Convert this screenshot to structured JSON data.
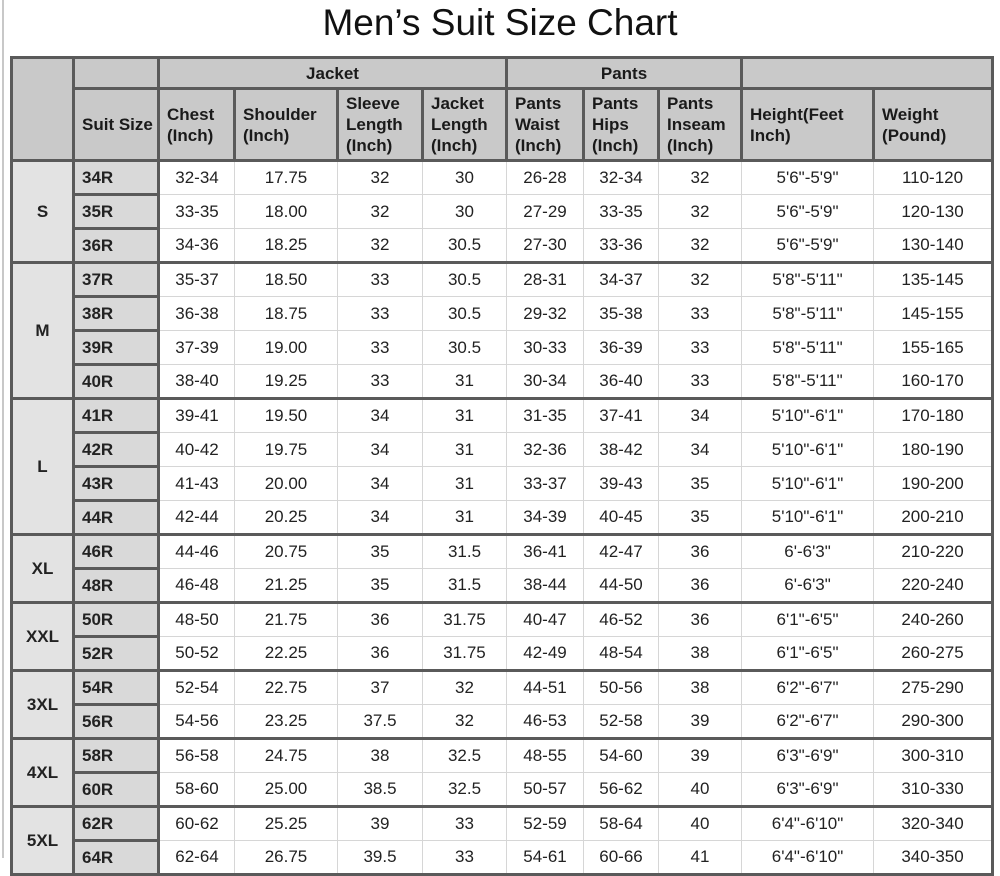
{
  "title": "Men’s Suit Size Chart",
  "group_headers": [
    "",
    "",
    "Jacket",
    "Pants",
    ""
  ],
  "column_headers": [
    "Suit Size",
    "Chest (Inch)",
    "Shoulder (Inch)",
    "Sleeve Length (Inch)",
    "Jacket Length (Inch)",
    "Pants Waist (Inch)",
    "Pants Hips (Inch)",
    "Pants Inseam (Inch)",
    "Height(Feet Inch)",
    "Weight (Pound)"
  ],
  "groups": [
    {
      "label": "S",
      "rows": [
        [
          "34R",
          "32-34",
          "17.75",
          "32",
          "30",
          "26-28",
          "32-34",
          "32",
          "5'6\"-5'9\"",
          "110-120"
        ],
        [
          "35R",
          "33-35",
          "18.00",
          "32",
          "30",
          "27-29",
          "33-35",
          "32",
          "5'6\"-5'9\"",
          "120-130"
        ],
        [
          "36R",
          "34-36",
          "18.25",
          "32",
          "30.5",
          "27-30",
          "33-36",
          "32",
          "5'6\"-5'9\"",
          "130-140"
        ]
      ]
    },
    {
      "label": "M",
      "rows": [
        [
          "37R",
          "35-37",
          "18.50",
          "33",
          "30.5",
          "28-31",
          "34-37",
          "32",
          "5'8\"-5'11\"",
          "135-145"
        ],
        [
          "38R",
          "36-38",
          "18.75",
          "33",
          "30.5",
          "29-32",
          "35-38",
          "33",
          "5'8\"-5'11\"",
          "145-155"
        ],
        [
          "39R",
          "37-39",
          "19.00",
          "33",
          "30.5",
          "30-33",
          "36-39",
          "33",
          "5'8\"-5'11\"",
          "155-165"
        ],
        [
          "40R",
          "38-40",
          "19.25",
          "33",
          "31",
          "30-34",
          "36-40",
          "33",
          "5'8\"-5'11\"",
          "160-170"
        ]
      ]
    },
    {
      "label": "L",
      "rows": [
        [
          "41R",
          "39-41",
          "19.50",
          "34",
          "31",
          "31-35",
          "37-41",
          "34",
          "5'10\"-6'1\"",
          "170-180"
        ],
        [
          "42R",
          "40-42",
          "19.75",
          "34",
          "31",
          "32-36",
          "38-42",
          "34",
          "5'10\"-6'1\"",
          "180-190"
        ],
        [
          "43R",
          "41-43",
          "20.00",
          "34",
          "31",
          "33-37",
          "39-43",
          "35",
          "5'10\"-6'1\"",
          "190-200"
        ],
        [
          "44R",
          "42-44",
          "20.25",
          "34",
          "31",
          "34-39",
          "40-45",
          "35",
          "5'10\"-6'1\"",
          "200-210"
        ]
      ]
    },
    {
      "label": "XL",
      "rows": [
        [
          "46R",
          "44-46",
          "20.75",
          "35",
          "31.5",
          "36-41",
          "42-47",
          "36",
          "6'-6'3\"",
          "210-220"
        ],
        [
          "48R",
          "46-48",
          "21.25",
          "35",
          "31.5",
          "38-44",
          "44-50",
          "36",
          "6'-6'3\"",
          "220-240"
        ]
      ]
    },
    {
      "label": "XXL",
      "rows": [
        [
          "50R",
          "48-50",
          "21.75",
          "36",
          "31.75",
          "40-47",
          "46-52",
          "36",
          "6'1\"-6'5\"",
          "240-260"
        ],
        [
          "52R",
          "50-52",
          "22.25",
          "36",
          "31.75",
          "42-49",
          "48-54",
          "38",
          "6'1\"-6'5\"",
          "260-275"
        ]
      ]
    },
    {
      "label": "3XL",
      "rows": [
        [
          "54R",
          "52-54",
          "22.75",
          "37",
          "32",
          "44-51",
          "50-56",
          "38",
          "6'2\"-6'7\"",
          "275-290"
        ],
        [
          "56R",
          "54-56",
          "23.25",
          "37.5",
          "32",
          "46-53",
          "52-58",
          "39",
          "6'2\"-6'7\"",
          "290-300"
        ]
      ]
    },
    {
      "label": "4XL",
      "rows": [
        [
          "58R",
          "56-58",
          "24.75",
          "38",
          "32.5",
          "48-55",
          "54-60",
          "39",
          "6'3\"-6'9\"",
          "300-310"
        ],
        [
          "60R",
          "58-60",
          "25.00",
          "38.5",
          "32.5",
          "50-57",
          "56-62",
          "40",
          "6'3\"-6'9\"",
          "310-330"
        ]
      ]
    },
    {
      "label": "5XL",
      "rows": [
        [
          "62R",
          "60-62",
          "25.25",
          "39",
          "33",
          "52-59",
          "58-64",
          "40",
          "6'4\"-6'10\"",
          "320-340"
        ],
        [
          "64R",
          "62-64",
          "26.75",
          "39.5",
          "33",
          "54-61",
          "60-66",
          "41",
          "6'4\"-6'10\"",
          "340-350"
        ]
      ]
    }
  ]
}
